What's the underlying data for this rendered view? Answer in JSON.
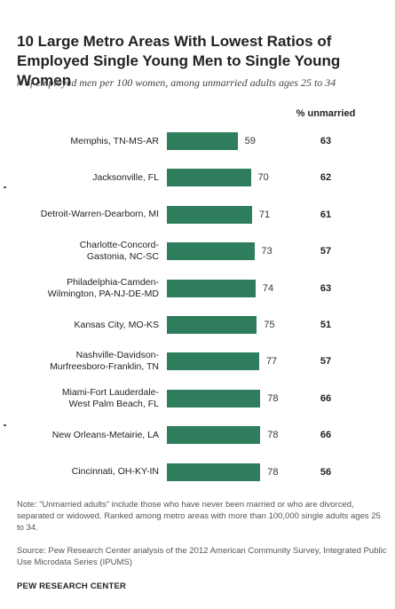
{
  "title": "10 Large Metro Areas With Lowest Ratios of Employed Single Young Men to Single Young Women",
  "subtitle": "# of employed men per 100 women, among unmarried adults ages 25 to 34",
  "column_header": "% unmarried",
  "colors": {
    "bar": "#2e7d5c"
  },
  "chart_data": {
    "type": "bar",
    "orientation": "horizontal",
    "title": "10 Large Metro Areas With Lowest Ratios of Employed Single Young Men to Single Young Women",
    "subtitle": "# of employed men per 100 women, among unmarried adults ages 25 to 34",
    "categories": [
      [
        "Memphis, TN-MS-AR"
      ],
      [
        "Jacksonville, FL"
      ],
      [
        "Detroit-Warren-Dearborn, MI"
      ],
      [
        "Charlotte-Concord-",
        "Gastonia, NC-SC"
      ],
      [
        "Philadelphia-Camden-",
        "Wilmington, PA-NJ-DE-MD"
      ],
      [
        "Kansas City, MO-KS"
      ],
      [
        "Nashville-Davidson-",
        "Murfreesboro-Franklin, TN"
      ],
      [
        "Miami-Fort Lauderdale-",
        "West Palm Beach, FL"
      ],
      [
        "New Orleans-Metairie, LA"
      ],
      [
        "Cincinnati, OH-KY-IN"
      ]
    ],
    "values": [
      59,
      70,
      71,
      73,
      74,
      75,
      77,
      78,
      78,
      78
    ],
    "unmarried_pct": [
      63,
      62,
      61,
      57,
      63,
      51,
      57,
      66,
      66,
      56
    ],
    "xlim": [
      0,
      100
    ],
    "grid": false,
    "legend": "none"
  },
  "note": "Note: “Unmarried adults” include those who have never been married or who are divorced, separated or widowed. Ranked among metro areas with more than 100,000 single adults ages 25 to 34.",
  "source": "Source: Pew Research Center analysis of the 2012 American Community Survey, Integrated Public Use Microdata Series (IPUMS)",
  "brand": "PEW RESEARCH CENTER"
}
